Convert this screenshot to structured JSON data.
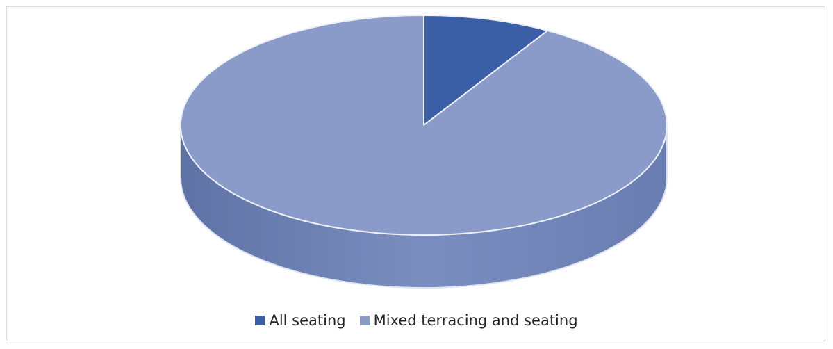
{
  "chart_data": {
    "type": "pie",
    "style": "3d",
    "categories": [
      "All seating",
      "Mixed terracing and seating"
    ],
    "values": [
      8.5,
      91.5
    ],
    "colors": [
      "#3a5fa6",
      "#8a9bca"
    ],
    "legend_position": "bottom",
    "title": ""
  },
  "legend": {
    "items": [
      {
        "label": "All seating",
        "color": "#3a5fa6"
      },
      {
        "label": "Mixed terracing and seating",
        "color": "#8a9bca"
      }
    ]
  }
}
